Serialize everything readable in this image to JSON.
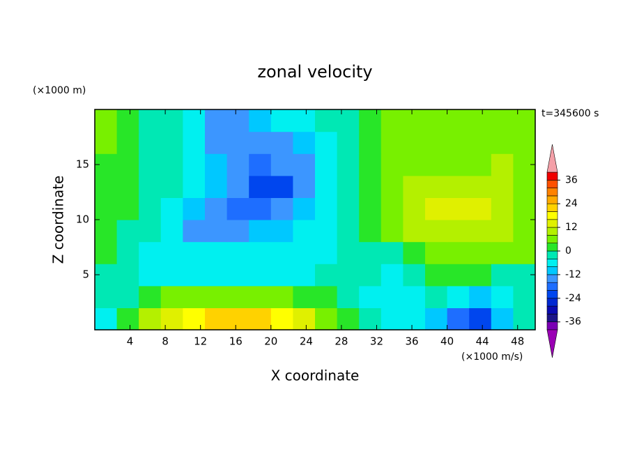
{
  "chart_data": {
    "type": "contour",
    "title": "zonal velocity",
    "xlabel": "X coordinate",
    "ylabel": "Z coordinate",
    "x_unit": "(×1000 m/s)",
    "y_unit": "(×1000 m)",
    "annotation": "t=345600 s",
    "xlim": [
      0,
      50
    ],
    "ylim": [
      0,
      20
    ],
    "xticks": [
      4,
      8,
      12,
      16,
      20,
      24,
      28,
      32,
      36,
      40,
      44,
      48
    ],
    "yticks": [
      5,
      10,
      15
    ],
    "levels": [
      -40,
      -36,
      -32,
      -28,
      -24,
      -20,
      -16,
      -12,
      -8,
      -4,
      0,
      4,
      8,
      12,
      16,
      20,
      24,
      28,
      32,
      36,
      40
    ],
    "colors": [
      "#7a00b4",
      "#1c1488",
      "#0a0ab0",
      "#0028d2",
      "#0046ee",
      "#1e6eff",
      "#3c96ff",
      "#00c8ff",
      "#00f0f0",
      "#00e8b4",
      "#28e628",
      "#78f000",
      "#b4f000",
      "#e0f000",
      "#ffff00",
      "#ffd200",
      "#ffaa00",
      "#ff8200",
      "#ff5000",
      "#f00000"
    ],
    "under_color": "#9a00b4",
    "over_color": "#f4a0a8",
    "colorbar_ticks": [
      -36,
      -24,
      -12,
      0,
      12,
      24,
      36
    ],
    "field": {
      "x": [
        1.25,
        3.75,
        6.25,
        8.75,
        11.25,
        13.75,
        16.25,
        18.75,
        21.25,
        23.75,
        26.25,
        28.75,
        31.25,
        33.75,
        36.25,
        38.75,
        41.25,
        43.75,
        46.25,
        48.75
      ],
      "z": [
        1,
        3,
        5,
        7,
        9,
        11,
        13,
        15,
        17,
        19
      ],
      "values": [
        [
          -6,
          2,
          10,
          14,
          18,
          22,
          22,
          22,
          18,
          14,
          6,
          2,
          -2,
          -6,
          -6,
          -10,
          -18,
          -22,
          -10,
          -2
        ],
        [
          -2,
          -2,
          2,
          6,
          6,
          6,
          6,
          6,
          6,
          2,
          2,
          -2,
          -6,
          -6,
          -6,
          -2,
          -6,
          -10,
          -6,
          -2
        ],
        [
          -2,
          -2,
          -6,
          -6,
          -6,
          -6,
          -6,
          -6,
          -6,
          -6,
          -2,
          -2,
          -2,
          -6,
          -2,
          2,
          2,
          2,
          -2,
          -2
        ],
        [
          2,
          -2,
          -6,
          -6,
          -6,
          -6,
          -6,
          -6,
          -6,
          -6,
          -6,
          -2,
          -2,
          -2,
          2,
          6,
          6,
          6,
          6,
          6
        ],
        [
          2,
          -2,
          -2,
          -6,
          -14,
          -14,
          -14,
          -10,
          -10,
          -6,
          -6,
          -2,
          2,
          6,
          10,
          10,
          10,
          10,
          10,
          6
        ],
        [
          2,
          2,
          -2,
          -6,
          -10,
          -14,
          -18,
          -18,
          -14,
          -10,
          -6,
          -2,
          2,
          6,
          10,
          14,
          14,
          14,
          10,
          6
        ],
        [
          2,
          2,
          -2,
          -2,
          -6,
          -10,
          -14,
          -22,
          -22,
          -14,
          -6,
          -2,
          2,
          6,
          10,
          10,
          10,
          10,
          10,
          6
        ],
        [
          2,
          2,
          -2,
          -2,
          -6,
          -10,
          -14,
          -18,
          -14,
          -14,
          -6,
          -2,
          2,
          6,
          6,
          6,
          6,
          6,
          10,
          6
        ],
        [
          4,
          2,
          -2,
          -2,
          -6,
          -14,
          -14,
          -14,
          -14,
          -10,
          -6,
          -2,
          2,
          6,
          6,
          6,
          6,
          6,
          6,
          6
        ],
        [
          6,
          2,
          -2,
          -2,
          -6,
          -14,
          -14,
          -10,
          -6,
          -6,
          -2,
          -2,
          2,
          6,
          6,
          6,
          6,
          6,
          6,
          6
        ]
      ]
    }
  }
}
